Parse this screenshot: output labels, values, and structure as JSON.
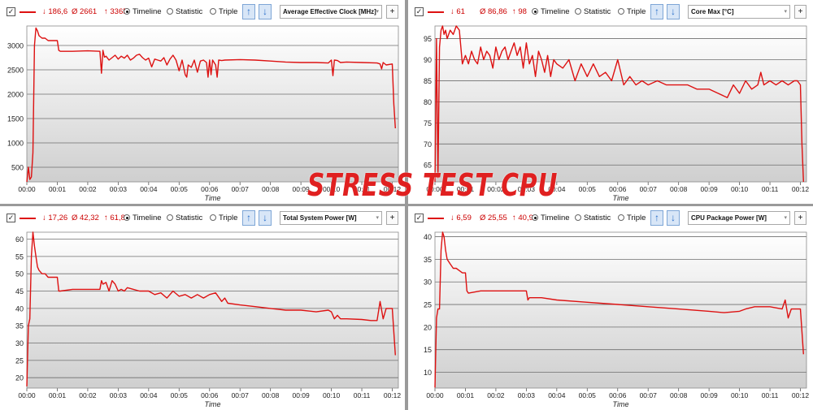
{
  "overlay_title": "STRESS TEST CPU",
  "line_color": "#dd1111",
  "panels": [
    {
      "stats": {
        "min": "↓ 186,6",
        "avg": "Ø 2661",
        "max": "↑ 3365"
      },
      "modes": [
        "Timeline",
        "Statistic",
        "Triple"
      ],
      "selected_mode": "Timeline",
      "sensor": "Average Effective Clock [MHz]",
      "add": "+"
    },
    {
      "stats": {
        "min": "↓ 61",
        "avg": "Ø 86,86",
        "max": "↑ 98"
      },
      "modes": [
        "Timeline",
        "Statistic",
        "Triple"
      ],
      "selected_mode": "Timeline",
      "sensor": "Core Max [°C]",
      "add": "+"
    },
    {
      "stats": {
        "min": "↓ 17,26",
        "avg": "Ø 42,32",
        "max": "↑ 61,8"
      },
      "modes": [
        "Timeline",
        "Statistic",
        "Triple"
      ],
      "selected_mode": "Timeline",
      "sensor": "Total System Power [W]",
      "add": "+"
    },
    {
      "stats": {
        "min": "↓ 6,59",
        "avg": "Ø 25,55",
        "max": "↑ 40,92"
      },
      "modes": [
        "Timeline",
        "Statistic",
        "Triple"
      ],
      "selected_mode": "Timeline",
      "sensor": "CPU Package Power [W]",
      "add": "+"
    }
  ],
  "chart_data": [
    {
      "type": "line",
      "title": "Average Effective Clock [MHz]",
      "xlabel": "Time",
      "ylabel": "",
      "x_ticks": [
        "00:00",
        "00:01",
        "00:02",
        "00:03",
        "00:04",
        "00:05",
        "00:06",
        "00:07",
        "00:08",
        "00:09",
        "00:10",
        "00:11",
        "00:12"
      ],
      "y_ticks": [
        500,
        1000,
        1500,
        2000,
        2500,
        3000
      ],
      "ylim": [
        200,
        3400
      ],
      "xlim": [
        0,
        12.2
      ],
      "grid": true,
      "series": [
        {
          "x": [
            0,
            0.05,
            0.1,
            0.15,
            0.2,
            0.25,
            0.3,
            0.35,
            0.4,
            0.5,
            0.6,
            0.7,
            0.8,
            0.9,
            1.0,
            1.05,
            1.1,
            1.5,
            2.0,
            2.4,
            2.45,
            2.5,
            2.55,
            2.6,
            2.7,
            2.8,
            2.9,
            3.0,
            3.1,
            3.2,
            3.3,
            3.4,
            3.5,
            3.6,
            3.7,
            3.8,
            3.9,
            4.0,
            4.1,
            4.2,
            4.3,
            4.4,
            4.5,
            4.6,
            4.7,
            4.8,
            4.9,
            5.0,
            5.1,
            5.2,
            5.25,
            5.3,
            5.4,
            5.5,
            5.6,
            5.7,
            5.8,
            5.9,
            5.95,
            6.0,
            6.05,
            6.1,
            6.2,
            6.25,
            6.3,
            6.4,
            6.5,
            7.0,
            7.5,
            8.0,
            8.5,
            9.0,
            9.5,
            9.9,
            10.0,
            10.05,
            10.1,
            10.2,
            10.3,
            10.5,
            11.0,
            11.5,
            11.6,
            11.65,
            11.7,
            11.8,
            12.0,
            12.05,
            12.1
          ],
          "y": [
            200,
            500,
            250,
            300,
            800,
            3000,
            3360,
            3300,
            3200,
            3150,
            3150,
            3100,
            3100,
            3100,
            3100,
            2900,
            2880,
            2880,
            2890,
            2880,
            2430,
            2900,
            2760,
            2780,
            2700,
            2750,
            2800,
            2720,
            2780,
            2740,
            2800,
            2700,
            2740,
            2800,
            2820,
            2750,
            2700,
            2740,
            2560,
            2720,
            2700,
            2680,
            2750,
            2600,
            2720,
            2800,
            2700,
            2480,
            2700,
            2400,
            2350,
            2600,
            2550,
            2700,
            2450,
            2680,
            2700,
            2650,
            2350,
            2700,
            2400,
            2700,
            2600,
            2350,
            2700,
            2690,
            2700,
            2710,
            2700,
            2680,
            2660,
            2650,
            2650,
            2640,
            2700,
            2380,
            2700,
            2690,
            2650,
            2660,
            2650,
            2640,
            2620,
            2520,
            2650,
            2600,
            2620,
            1800,
            1300
          ],
          "color": "#dd1111"
        }
      ]
    },
    {
      "type": "line",
      "title": "Core Max [°C]",
      "xlabel": "Time",
      "ylabel": "",
      "x_ticks": [
        "00:00",
        "00:01",
        "00:02",
        "00:03",
        "00:04",
        "00:05",
        "00:06",
        "00:07",
        "00:08",
        "00:09",
        "00:10",
        "00:11",
        "00:12"
      ],
      "y_ticks": [
        65,
        70,
        75,
        80,
        85,
        90,
        95
      ],
      "ylim": [
        61,
        98
      ],
      "xlim": [
        0,
        12.2
      ],
      "grid": true,
      "series": [
        {
          "x": [
            0,
            0.05,
            0.1,
            0.15,
            0.2,
            0.25,
            0.3,
            0.35,
            0.4,
            0.5,
            0.6,
            0.7,
            0.8,
            0.9,
            1.0,
            1.1,
            1.2,
            1.3,
            1.4,
            1.5,
            1.6,
            1.7,
            1.8,
            1.9,
            2.0,
            2.1,
            2.2,
            2.3,
            2.4,
            2.5,
            2.6,
            2.7,
            2.8,
            2.9,
            3.0,
            3.1,
            3.2,
            3.3,
            3.4,
            3.5,
            3.6,
            3.7,
            3.8,
            3.9,
            4.0,
            4.2,
            4.4,
            4.6,
            4.8,
            5.0,
            5.2,
            5.4,
            5.6,
            5.8,
            6.0,
            6.2,
            6.4,
            6.6,
            6.8,
            7.0,
            7.3,
            7.6,
            8.0,
            8.3,
            8.6,
            9.0,
            9.3,
            9.6,
            9.8,
            10.0,
            10.2,
            10.4,
            10.6,
            10.7,
            10.8,
            11.0,
            11.2,
            11.4,
            11.6,
            11.8,
            11.9,
            12.0,
            12.05,
            12.1
          ],
          "y": [
            61,
            95,
            62,
            93,
            97,
            98,
            96,
            97,
            95,
            97,
            96,
            98,
            97,
            89,
            91,
            89,
            92,
            90,
            89,
            93,
            90,
            92,
            91,
            88,
            93,
            90,
            92,
            93,
            90,
            92,
            94,
            91,
            93,
            88,
            94,
            89,
            91,
            86,
            92,
            90,
            87,
            91,
            86,
            90,
            89,
            88,
            90,
            85,
            89,
            86,
            89,
            86,
            87,
            85,
            90,
            84,
            86,
            84,
            85,
            84,
            85,
            84,
            84,
            84,
            83,
            83,
            82,
            81,
            84,
            82,
            85,
            83,
            84,
            87,
            84,
            85,
            84,
            85,
            84,
            85,
            85,
            84,
            70,
            61
          ],
          "color": "#dd1111"
        }
      ]
    },
    {
      "type": "line",
      "title": "Total System Power [W]",
      "xlabel": "Time",
      "ylabel": "",
      "x_ticks": [
        "00:00",
        "00:01",
        "00:02",
        "00:03",
        "00:04",
        "00:05",
        "00:06",
        "00:07",
        "00:08",
        "00:09",
        "00:10",
        "00:11",
        "00:12"
      ],
      "y_ticks": [
        20,
        25,
        30,
        35,
        40,
        45,
        50,
        55,
        60
      ],
      "ylim": [
        17,
        62
      ],
      "xlim": [
        0,
        12.2
      ],
      "grid": true,
      "series": [
        {
          "x": [
            0,
            0.05,
            0.1,
            0.15,
            0.2,
            0.25,
            0.3,
            0.35,
            0.4,
            0.5,
            0.6,
            0.7,
            0.8,
            0.9,
            1.0,
            1.05,
            1.1,
            1.5,
            2.0,
            2.4,
            2.45,
            2.5,
            2.6,
            2.7,
            2.8,
            2.9,
            3.0,
            3.1,
            3.2,
            3.3,
            3.5,
            3.7,
            4.0,
            4.2,
            4.4,
            4.6,
            4.8,
            5.0,
            5.2,
            5.4,
            5.6,
            5.8,
            6.0,
            6.2,
            6.4,
            6.5,
            6.6,
            7.0,
            7.5,
            8.0,
            8.5,
            9.0,
            9.5,
            9.9,
            10.0,
            10.1,
            10.2,
            10.3,
            10.5,
            11.0,
            11.3,
            11.5,
            11.6,
            11.7,
            11.8,
            12.0,
            12.1
          ],
          "y": [
            17.5,
            35,
            37,
            55,
            62,
            58,
            55,
            52,
            51,
            50,
            50,
            49,
            49,
            49,
            49,
            45,
            45,
            45.5,
            45.5,
            45.5,
            48,
            47,
            47.5,
            45,
            48,
            47,
            45,
            45.5,
            45,
            46,
            45.5,
            45,
            45,
            44,
            44.5,
            43,
            45,
            43.5,
            44,
            43,
            44,
            43,
            44,
            44.5,
            42,
            43,
            41.5,
            41,
            40.5,
            40,
            39.5,
            39.5,
            39,
            39.5,
            39,
            37,
            38,
            37,
            37,
            36.8,
            36.5,
            36.5,
            42,
            37,
            40,
            40,
            26.5
          ],
          "color": "#dd1111"
        }
      ]
    },
    {
      "type": "line",
      "title": "CPU Package Power [W]",
      "xlabel": "Time",
      "ylabel": "",
      "x_ticks": [
        "00:00",
        "00:01",
        "00:02",
        "00:03",
        "00:04",
        "00:05",
        "00:06",
        "00:07",
        "00:08",
        "00:09",
        "00:10",
        "00:11",
        "00:12"
      ],
      "y_ticks": [
        10,
        15,
        20,
        25,
        30,
        35,
        40
      ],
      "ylim": [
        6.5,
        41
      ],
      "xlim": [
        0,
        12.2
      ],
      "grid": true,
      "series": [
        {
          "x": [
            0,
            0.05,
            0.1,
            0.15,
            0.2,
            0.25,
            0.3,
            0.35,
            0.4,
            0.5,
            0.6,
            0.7,
            0.8,
            0.9,
            1.0,
            1.05,
            1.1,
            1.5,
            2.0,
            2.5,
            3.0,
            3.05,
            3.1,
            3.5,
            4.0,
            5.0,
            6.0,
            7.0,
            8.0,
            9.0,
            9.5,
            10.0,
            10.2,
            10.5,
            11.0,
            11.4,
            11.5,
            11.6,
            11.7,
            12.0,
            12.1
          ],
          "y": [
            6.6,
            22,
            24,
            24,
            37,
            41,
            40,
            37,
            35,
            34,
            33,
            33,
            32.5,
            32,
            32,
            28,
            27.5,
            28,
            28,
            28,
            28,
            26,
            26.5,
            26.5,
            26,
            25.5,
            25,
            24.5,
            24,
            23.5,
            23.2,
            23.5,
            24,
            24.5,
            24.5,
            24,
            26,
            22,
            24,
            24,
            14
          ],
          "color": "#dd1111"
        }
      ]
    }
  ]
}
